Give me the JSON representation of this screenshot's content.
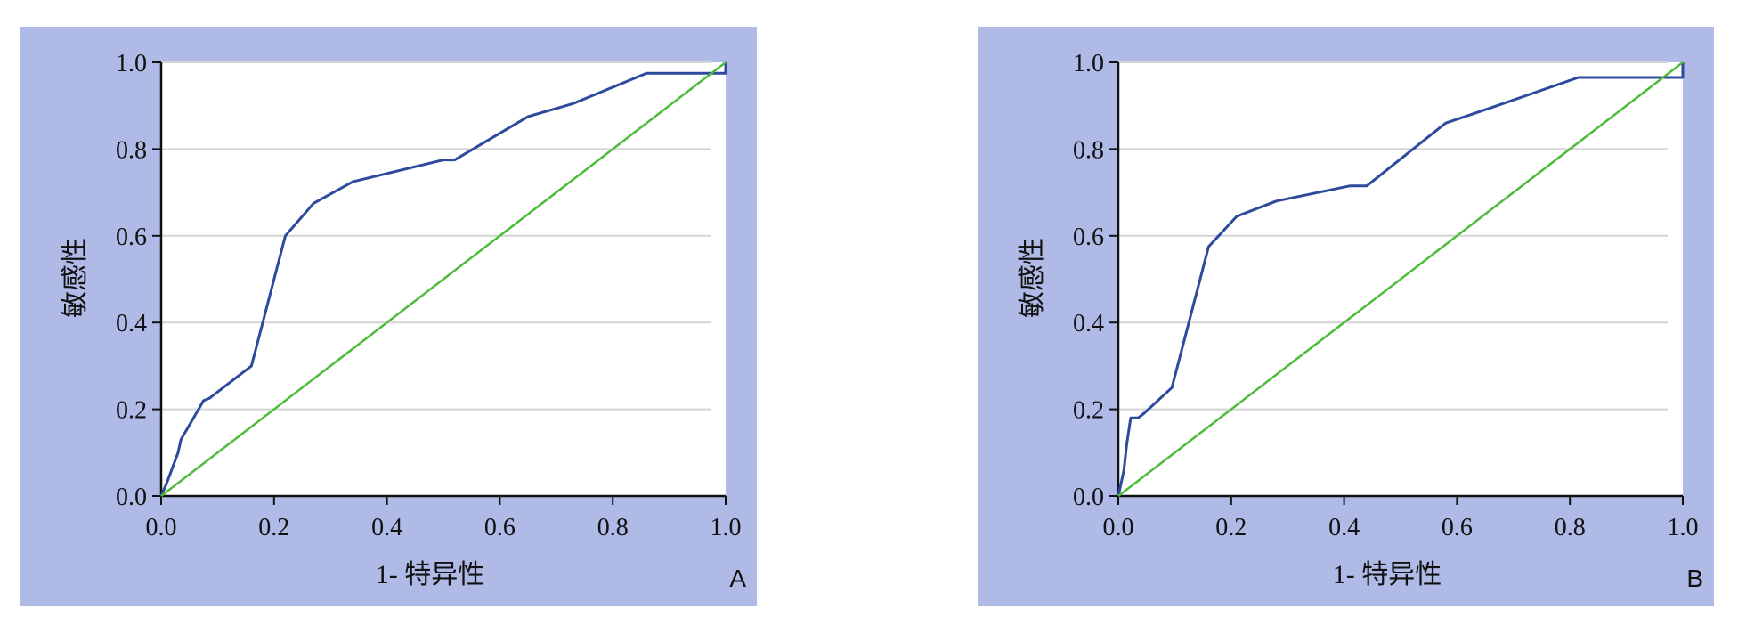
{
  "colors": {
    "panel_bg": "#b0bae6",
    "plot_bg": "#ffffff",
    "grid": "#d4d4d4",
    "roc_line": "#2d4a9c",
    "reference_line": "#4dbb3a",
    "axis": "#111111"
  },
  "chart_data": [
    {
      "type": "line",
      "panel_label": "A",
      "xlabel": "1- 特异性",
      "ylabel": "敏感性",
      "xlim": [
        0,
        1
      ],
      "ylim": [
        0,
        1
      ],
      "xticks": [
        "0.0",
        "0.2",
        "0.4",
        "0.6",
        "0.8",
        "1.0"
      ],
      "yticks": [
        "0.0",
        "0.2",
        "0.4",
        "0.6",
        "0.8",
        "1.0"
      ],
      "grid": "horizontal",
      "series": [
        {
          "x": [
            0,
            0.01,
            0.03,
            0.035,
            0.075,
            0.085,
            0.16,
            0.22,
            0.27,
            0.34,
            0.5,
            0.52,
            0.65,
            0.73,
            0.86,
            1.0,
            1.0
          ],
          "y": [
            0,
            0.03,
            0.1,
            0.13,
            0.22,
            0.225,
            0.3,
            0.6,
            0.675,
            0.725,
            0.775,
            0.775,
            0.875,
            0.905,
            0.975,
            0.975,
            1.0
          ]
        },
        {
          "x": [
            0,
            1
          ],
          "y": [
            0,
            1
          ]
        }
      ]
    },
    {
      "type": "line",
      "panel_label": "B",
      "xlabel": "1- 特异性",
      "ylabel": "敏感性",
      "xlim": [
        0,
        1
      ],
      "ylim": [
        0,
        1
      ],
      "xticks": [
        "0.0",
        "0.2",
        "0.4",
        "0.6",
        "0.8",
        "1.0"
      ],
      "yticks": [
        "0.0",
        "0.2",
        "0.4",
        "0.6",
        "0.8",
        "1.0"
      ],
      "grid": "horizontal",
      "series": [
        {
          "x": [
            0,
            0.005,
            0.01,
            0.015,
            0.022,
            0.035,
            0.045,
            0.095,
            0.16,
            0.21,
            0.28,
            0.41,
            0.44,
            0.58,
            0.66,
            0.815,
            1.0,
            1.0
          ],
          "y": [
            0,
            0.03,
            0.06,
            0.12,
            0.18,
            0.18,
            0.19,
            0.25,
            0.575,
            0.645,
            0.68,
            0.715,
            0.715,
            0.86,
            0.895,
            0.965,
            0.965,
            1.0
          ]
        },
        {
          "x": [
            0,
            1
          ],
          "y": [
            0,
            1
          ]
        }
      ]
    }
  ]
}
